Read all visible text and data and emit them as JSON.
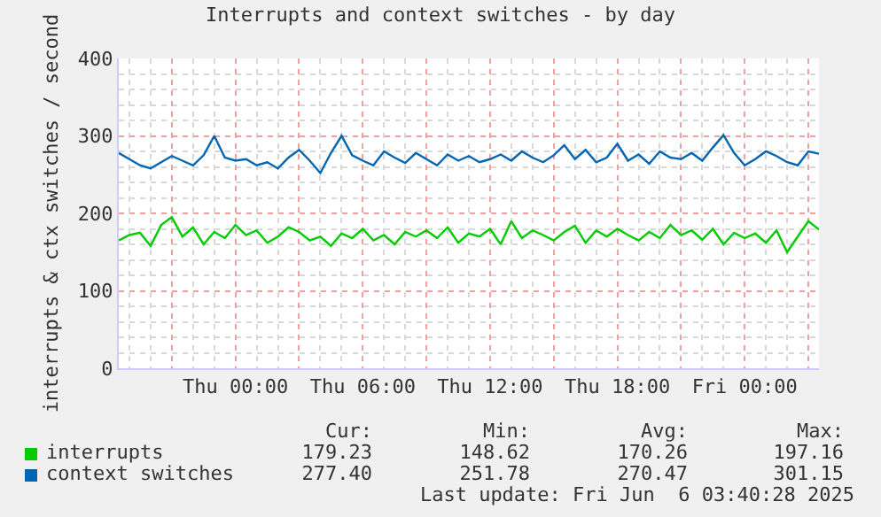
{
  "chart_data": {
    "type": "line",
    "title": "Interrupts and context switches - by day",
    "ylabel": "interrupts & ctx switches / second",
    "x": [
      "2025-06-04T18:30",
      "2025-06-04T19:00",
      "2025-06-04T19:30",
      "2025-06-04T20:00",
      "2025-06-04T20:30",
      "2025-06-04T21:00",
      "2025-06-04T21:30",
      "2025-06-04T22:00",
      "2025-06-04T22:30",
      "2025-06-04T23:00",
      "2025-06-04T23:30",
      "2025-06-05T00:00",
      "2025-06-05T00:30",
      "2025-06-05T01:00",
      "2025-06-05T01:30",
      "2025-06-05T02:00",
      "2025-06-05T02:30",
      "2025-06-05T03:00",
      "2025-06-05T03:30",
      "2025-06-05T04:00",
      "2025-06-05T04:30",
      "2025-06-05T05:00",
      "2025-06-05T05:30",
      "2025-06-05T06:00",
      "2025-06-05T06:30",
      "2025-06-05T07:00",
      "2025-06-05T07:30",
      "2025-06-05T08:00",
      "2025-06-05T08:30",
      "2025-06-05T09:00",
      "2025-06-05T09:30",
      "2025-06-05T10:00",
      "2025-06-05T10:30",
      "2025-06-05T11:00",
      "2025-06-05T11:30",
      "2025-06-05T12:00",
      "2025-06-05T12:30",
      "2025-06-05T13:00",
      "2025-06-05T13:30",
      "2025-06-05T14:00",
      "2025-06-05T14:30",
      "2025-06-05T15:00",
      "2025-06-05T15:30",
      "2025-06-05T16:00",
      "2025-06-05T16:30",
      "2025-06-05T17:00",
      "2025-06-05T17:30",
      "2025-06-05T18:00",
      "2025-06-05T18:30",
      "2025-06-05T19:00",
      "2025-06-05T19:30",
      "2025-06-05T20:00",
      "2025-06-05T20:30",
      "2025-06-05T21:00",
      "2025-06-05T21:30",
      "2025-06-05T22:00",
      "2025-06-05T22:30",
      "2025-06-05T23:00",
      "2025-06-05T23:30",
      "2025-06-06T00:00",
      "2025-06-06T00:30",
      "2025-06-06T01:00",
      "2025-06-06T01:30",
      "2025-06-06T02:00",
      "2025-06-06T02:30",
      "2025-06-06T03:00",
      "2025-06-06T03:30"
    ],
    "series": [
      {
        "name": "interrupts",
        "color": "#00cc00",
        "values": [
          165,
          172,
          175,
          158,
          185,
          195,
          170,
          182,
          160,
          176,
          168,
          185,
          172,
          178,
          162,
          170,
          182,
          176,
          165,
          170,
          158,
          174,
          168,
          180,
          165,
          172,
          160,
          176,
          170,
          178,
          168,
          182,
          162,
          174,
          170,
          180,
          160,
          190,
          168,
          178,
          172,
          165,
          176,
          184,
          162,
          178,
          170,
          180,
          172,
          165,
          176,
          168,
          185,
          172,
          178,
          166,
          180,
          160,
          175,
          168,
          174,
          162,
          178,
          150,
          170,
          190,
          179
        ]
      },
      {
        "name": "context switches",
        "color": "#0066b3",
        "values": [
          278,
          270,
          262,
          258,
          266,
          274,
          268,
          262,
          275,
          300,
          272,
          268,
          270,
          262,
          266,
          258,
          272,
          282,
          268,
          252,
          278,
          300,
          275,
          268,
          262,
          280,
          272,
          265,
          278,
          270,
          262,
          276,
          268,
          274,
          266,
          270,
          276,
          268,
          280,
          272,
          266,
          275,
          288,
          270,
          282,
          266,
          272,
          290,
          268,
          276,
          264,
          280,
          272,
          270,
          278,
          268,
          285,
          301,
          278,
          262,
          270,
          280,
          274,
          266,
          262,
          280,
          277
        ]
      }
    ],
    "xlim": [
      "2025-06-04T18:30",
      "2025-06-06T03:30"
    ],
    "xticks": [
      {
        "value": "2025-06-04T21:00",
        "label": null
      },
      {
        "value": "2025-06-05T00:00",
        "label": "Thu 00:00"
      },
      {
        "value": "2025-06-05T03:00",
        "label": null
      },
      {
        "value": "2025-06-05T06:00",
        "label": "Thu 06:00"
      },
      {
        "value": "2025-06-05T09:00",
        "label": null
      },
      {
        "value": "2025-06-05T12:00",
        "label": "Thu 12:00"
      },
      {
        "value": "2025-06-05T15:00",
        "label": null
      },
      {
        "value": "2025-06-05T18:00",
        "label": "Thu 18:00"
      },
      {
        "value": "2025-06-05T21:00",
        "label": null
      },
      {
        "value": "2025-06-06T00:00",
        "label": "Fri 00:00"
      },
      {
        "value": "2025-06-06T03:00",
        "label": null
      }
    ],
    "ylim": [
      0,
      400
    ],
    "yticks": [
      0,
      100,
      200,
      300,
      400
    ],
    "grid": true,
    "legend": "bottom",
    "annotations": [
      "Cur:",
      "Min:",
      "Avg:",
      "Max:",
      "179.23",
      "148.62",
      "170.26",
      "197.16",
      "277.40",
      "251.78",
      "270.47",
      "301.15",
      "Last update: Fri Jun  6 03:40:28 2025"
    ]
  }
}
